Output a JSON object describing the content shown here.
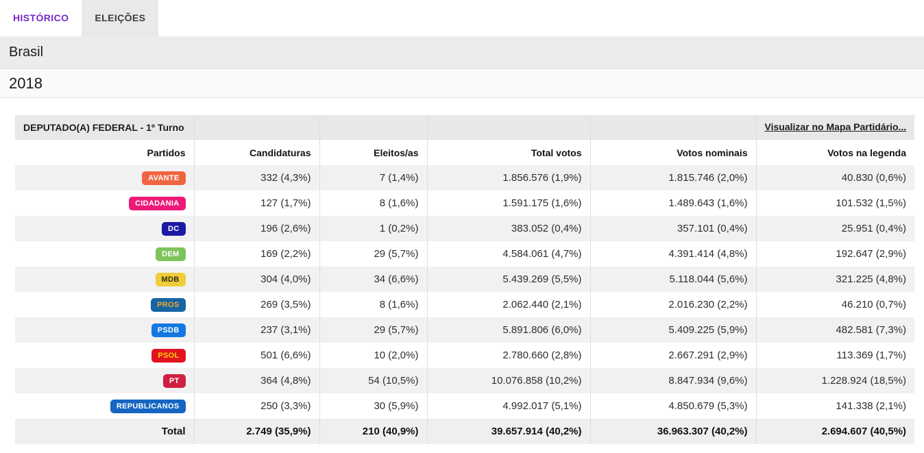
{
  "tabs": [
    {
      "label": "HISTÓRICO",
      "active": false
    },
    {
      "label": "ELEIÇÕES",
      "active": true
    }
  ],
  "region": "Brasil",
  "year": "2018",
  "colors": {
    "accent_purple": "#7728C8",
    "tab_inactive_bg": "#E9E9E9",
    "region_band_bg": "#ECECEC",
    "table_title_bg": "#E8E8E8",
    "stripe_bg": "#F1F1F1"
  },
  "table": {
    "title": "DEPUTADO(A) FEDERAL - 1º Turno",
    "map_link": "Visualizar no Mapa Partidário...",
    "columns": [
      "Partidos",
      "Candidaturas",
      "Eleitos/as",
      "Total votos",
      "Votos nominais",
      "Votos na legenda"
    ],
    "rows": [
      {
        "party": "AVANTE",
        "badge_bg": "#F0653F",
        "badge_fg": "#FFFFFF",
        "candidaturas": "332 (4,3%)",
        "eleitos": "7 (1,4%)",
        "total_votos": "1.856.576 (1,9%)",
        "votos_nominais": "1.815.746 (2,0%)",
        "votos_legenda": "40.830 (0,6%)"
      },
      {
        "party": "CIDADANIA",
        "badge_bg": "#EC1A76",
        "badge_fg": "#FFFFFF",
        "candidaturas": "127 (1,7%)",
        "eleitos": "8 (1,6%)",
        "total_votos": "1.591.175 (1,6%)",
        "votos_nominais": "1.489.643 (1,6%)",
        "votos_legenda": "101.532 (1,5%)"
      },
      {
        "party": "DC",
        "badge_bg": "#1B19A5",
        "badge_fg": "#FFFFFF",
        "candidaturas": "196 (2,6%)",
        "eleitos": "1 (0,2%)",
        "total_votos": "383.052 (0,4%)",
        "votos_nominais": "357.101 (0,4%)",
        "votos_legenda": "25.951 (0,4%)"
      },
      {
        "party": "DEM",
        "badge_bg": "#7EC35C",
        "badge_fg": "#FFFFFF",
        "candidaturas": "169 (2,2%)",
        "eleitos": "29 (5,7%)",
        "total_votos": "4.584.061 (4,7%)",
        "votos_nominais": "4.391.414 (4,8%)",
        "votos_legenda": "192.647 (2,9%)"
      },
      {
        "party": "MDB",
        "badge_bg": "#F1CC3B",
        "badge_fg": "#332F0A",
        "candidaturas": "304 (4,0%)",
        "eleitos": "34 (6,6%)",
        "total_votos": "5.439.269 (5,5%)",
        "votos_nominais": "5.118.044 (5,6%)",
        "votos_legenda": "321.225 (4,8%)"
      },
      {
        "party": "PROS",
        "badge_bg": "#1465A4",
        "badge_fg": "#F0A62C",
        "candidaturas": "269 (3,5%)",
        "eleitos": "8 (1,6%)",
        "total_votos": "2.062.440 (2,1%)",
        "votos_nominais": "2.016.230 (2,2%)",
        "votos_legenda": "46.210 (0,7%)"
      },
      {
        "party": "PSDB",
        "badge_bg": "#1478E0",
        "badge_fg": "#FFFFFF",
        "candidaturas": "237 (3,1%)",
        "eleitos": "29 (5,7%)",
        "total_votos": "5.891.806 (6,0%)",
        "votos_nominais": "5.409.225 (5,9%)",
        "votos_legenda": "482.581 (7,3%)"
      },
      {
        "party": "PSOL",
        "badge_bg": "#E2131F",
        "badge_fg": "#FFD500",
        "candidaturas": "501 (6,6%)",
        "eleitos": "10 (2,0%)",
        "total_votos": "2.780.660 (2,8%)",
        "votos_nominais": "2.667.291 (2,9%)",
        "votos_legenda": "113.369 (1,7%)"
      },
      {
        "party": "PT",
        "badge_bg": "#D01F40",
        "badge_fg": "#FFFFFF",
        "candidaturas": "364 (4,8%)",
        "eleitos": "54 (10,5%)",
        "total_votos": "10.076.858 (10,2%)",
        "votos_nominais": "8.847.934 (9,6%)",
        "votos_legenda": "1.228.924 (18,5%)"
      },
      {
        "party": "REPUBLICANOS",
        "badge_bg": "#1565C2",
        "badge_fg": "#FFFFFF",
        "candidaturas": "250 (3,3%)",
        "eleitos": "30 (5,9%)",
        "total_votos": "4.992.017 (5,1%)",
        "votos_nominais": "4.850.679 (5,3%)",
        "votos_legenda": "141.338 (2,1%)"
      },
      {
        "party": "Total",
        "is_total": true,
        "candidaturas": "2.749 (35,9%)",
        "eleitos": "210 (40,9%)",
        "total_votos": "39.657.914 (40,2%)",
        "votos_nominais": "36.963.307 (40,2%)",
        "votos_legenda": "2.694.607 (40,5%)"
      }
    ]
  }
}
